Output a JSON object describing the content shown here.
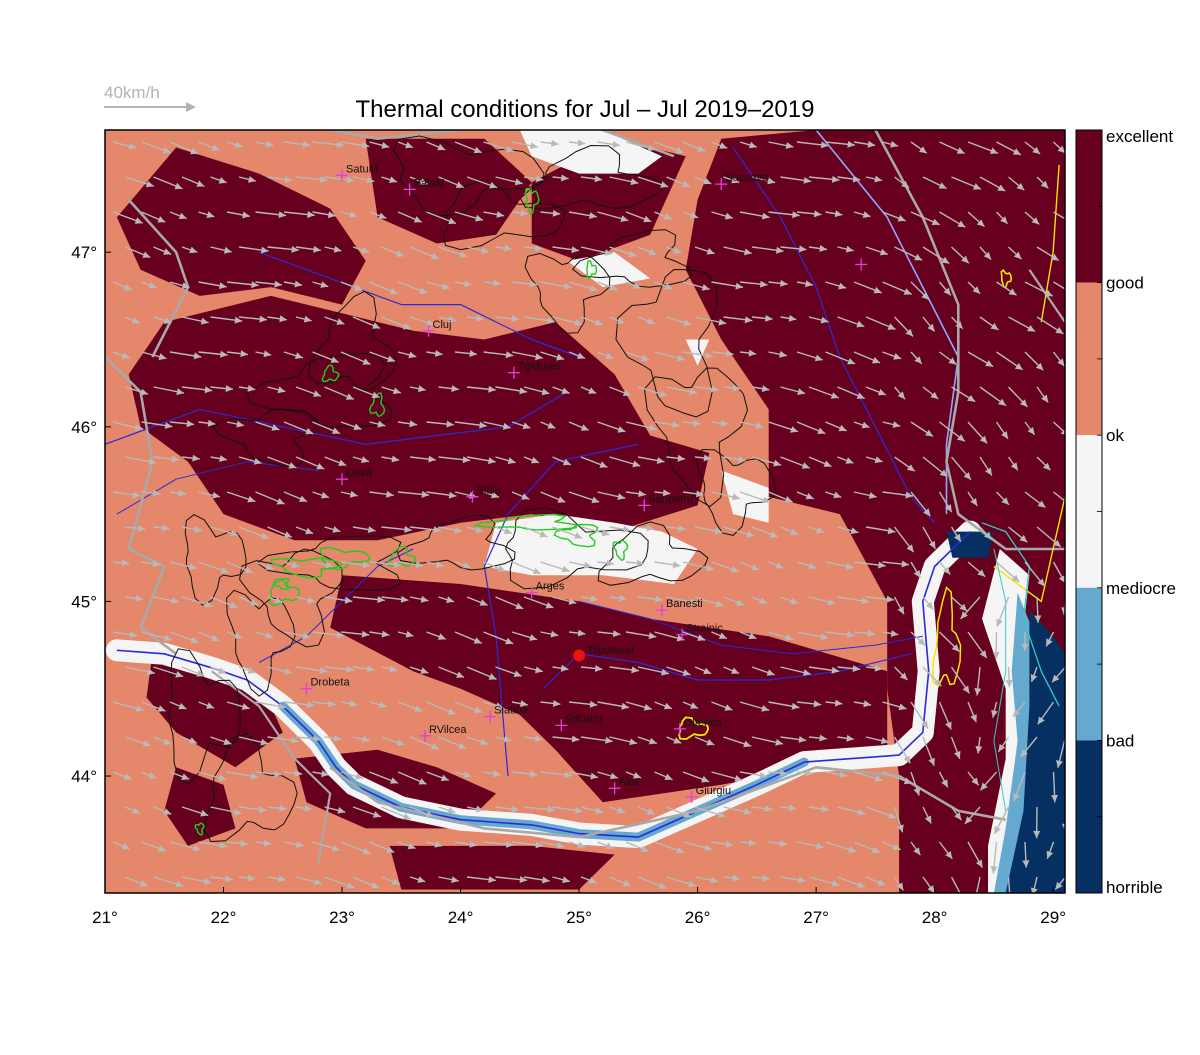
{
  "title": "Thermal conditions for Jul – Jul  2019–2019",
  "wind_scale": {
    "label": "40km/h",
    "color": "#b3b3b3"
  },
  "axes": {
    "lon_range": [
      21,
      29.1
    ],
    "lat_range": [
      43.33,
      47.7
    ],
    "x_ticks": [
      {
        "value": 21,
        "label": "21°"
      },
      {
        "value": 22,
        "label": "22°"
      },
      {
        "value": 23,
        "label": "23°"
      },
      {
        "value": 24,
        "label": "24°"
      },
      {
        "value": 25,
        "label": "25°"
      },
      {
        "value": 26,
        "label": "26°"
      },
      {
        "value": 27,
        "label": "27°"
      },
      {
        "value": 28,
        "label": "28°"
      },
      {
        "value": 29,
        "label": "29°"
      }
    ],
    "y_ticks": [
      {
        "value": 44,
        "label": "44°"
      },
      {
        "value": 45,
        "label": "45°"
      },
      {
        "value": 46,
        "label": "46°"
      },
      {
        "value": 47,
        "label": "47°"
      }
    ]
  },
  "legend": {
    "categories": [
      {
        "label": "excellent",
        "color": "#67001f"
      },
      {
        "label": "good",
        "color": "#e5876a"
      },
      {
        "label": "ok",
        "color": "#f5f5f5"
      },
      {
        "label": "mediocre",
        "color": "#66a9cf"
      },
      {
        "label": "bad",
        "color": "#053061"
      },
      {
        "label": "horrible",
        "color": ""
      }
    ]
  },
  "colors": {
    "excellent": "#67001f",
    "good": "#e5876a",
    "ok": "#f5f5f5",
    "mediocre": "#66a9cf",
    "bad": "#053061",
    "river": "#2a2ad9",
    "border": "#a9a9a9",
    "contour": "#111111",
    "alpine": "#22cc22",
    "lake": "#f5e600",
    "coast": "#33cccc",
    "arrow": "#b9b9b9",
    "city_marker": "#e040e0",
    "station": "#ee1111"
  },
  "cities": [
    {
      "name": "SatuM",
      "lon": 23.0,
      "lat": 47.44
    },
    {
      "name": "BaiaM",
      "lon": 23.57,
      "lat": 47.36
    },
    {
      "name": "Suceava",
      "lon": 26.2,
      "lat": 47.39
    },
    {
      "name": "",
      "lon": 27.38,
      "lat": 46.93
    },
    {
      "name": "Cluj",
      "lon": 23.73,
      "lat": 46.55
    },
    {
      "name": "TgMures",
      "lon": 24.45,
      "lat": 46.31
    },
    {
      "name": "Deva",
      "lon": 23.0,
      "lat": 45.7
    },
    {
      "name": "Sibiu",
      "lon": 24.1,
      "lat": 45.6
    },
    {
      "name": "Sanpetru",
      "lon": 25.55,
      "lat": 45.55
    },
    {
      "name": "Arges",
      "lon": 24.6,
      "lat": 45.05
    },
    {
      "name": "Banesti",
      "lon": 25.7,
      "lat": 44.95
    },
    {
      "name": "Strainic",
      "lon": 25.87,
      "lat": 44.81
    },
    {
      "name": "Drobeta",
      "lon": 22.7,
      "lat": 44.5
    },
    {
      "name": "Slatine",
      "lon": 24.25,
      "lat": 44.34
    },
    {
      "name": "StlGum",
      "lon": 24.85,
      "lat": 44.29
    },
    {
      "name": "Oltenita",
      "lon": 25.85,
      "lat": 44.27
    },
    {
      "name": "RVilcea",
      "lon": 23.7,
      "lat": 44.23
    },
    {
      "name": "Alex",
      "lon": 25.3,
      "lat": 43.93
    },
    {
      "name": "Giurgiu",
      "lon": 25.95,
      "lat": 43.88
    }
  ],
  "station": {
    "name": "Topolovat",
    "lon": 25.0,
    "lat": 44.69
  }
}
